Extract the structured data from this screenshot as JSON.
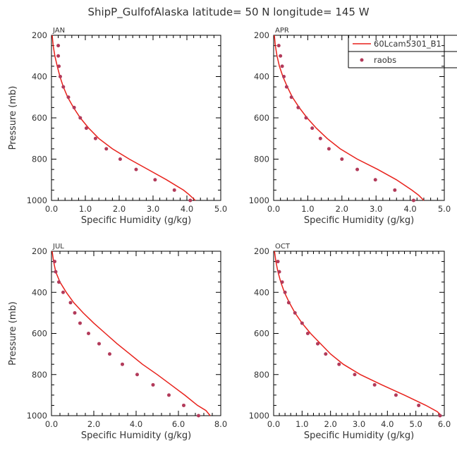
{
  "title": "ShipP_GulfofAlaska  latitude= 50 N longitude= 145 W",
  "chart_data": [
    {
      "type": "line",
      "panel": "JAN",
      "xlabel": "Specific Humidity (g/kg)",
      "ylabel": "Pressure (mb)",
      "xlim": [
        0,
        5
      ],
      "xticks": [
        "0.0",
        "1.0",
        "2.0",
        "3.0",
        "4.0",
        "5.0"
      ],
      "ylim": [
        200,
        1000
      ],
      "yticks": [
        "200",
        "400",
        "600",
        "800",
        "1000"
      ],
      "y_inverted": true,
      "series": [
        {
          "name": "60Lcam5301_B1",
          "kind": "line",
          "color": "#e8211b",
          "points": [
            [
              0.02,
              200
            ],
            [
              0.05,
              250
            ],
            [
              0.1,
              300
            ],
            [
              0.17,
              350
            ],
            [
              0.25,
              400
            ],
            [
              0.35,
              450
            ],
            [
              0.48,
              500
            ],
            [
              0.65,
              550
            ],
            [
              0.85,
              600
            ],
            [
              1.1,
              650
            ],
            [
              1.4,
              700
            ],
            [
              1.8,
              750
            ],
            [
              2.3,
              800
            ],
            [
              2.85,
              850
            ],
            [
              3.4,
              900
            ],
            [
              3.9,
              950
            ],
            [
              4.05,
              970
            ],
            [
              4.25,
              1000
            ]
          ]
        },
        {
          "name": "raobs",
          "kind": "marker",
          "color": "#b23a5a",
          "points": [
            [
              0.2,
              250
            ],
            [
              0.2,
              300
            ],
            [
              0.22,
              350
            ],
            [
              0.26,
              400
            ],
            [
              0.35,
              450
            ],
            [
              0.5,
              500
            ],
            [
              0.67,
              550
            ],
            [
              0.85,
              600
            ],
            [
              1.03,
              650
            ],
            [
              1.3,
              700
            ],
            [
              1.62,
              750
            ],
            [
              2.03,
              800
            ],
            [
              2.5,
              850
            ],
            [
              3.06,
              900
            ],
            [
              3.63,
              950
            ],
            [
              4.1,
              1000
            ]
          ]
        }
      ]
    },
    {
      "type": "line",
      "panel": "APR",
      "xlabel": "Specific Humidity (g/kg)",
      "ylabel": "",
      "xlim": [
        0,
        5
      ],
      "xticks": [
        "0.0",
        "1.0",
        "2.0",
        "3.0",
        "4.0",
        "5.0"
      ],
      "ylim": [
        200,
        1000
      ],
      "yticks": [
        "200",
        "400",
        "600",
        "800",
        "1000"
      ],
      "y_inverted": true,
      "legend": {
        "position": "top-right",
        "entries": [
          "60Lcam5301_B1",
          "raobs"
        ]
      },
      "series": [
        {
          "name": "60Lcam5301_B1",
          "kind": "line",
          "color": "#e8211b",
          "points": [
            [
              0.02,
              200
            ],
            [
              0.05,
              250
            ],
            [
              0.1,
              300
            ],
            [
              0.17,
              350
            ],
            [
              0.27,
              400
            ],
            [
              0.4,
              450
            ],
            [
              0.55,
              500
            ],
            [
              0.75,
              550
            ],
            [
              0.98,
              600
            ],
            [
              1.25,
              650
            ],
            [
              1.57,
              700
            ],
            [
              1.95,
              750
            ],
            [
              2.45,
              800
            ],
            [
              3.05,
              850
            ],
            [
              3.6,
              900
            ],
            [
              4.05,
              950
            ],
            [
              4.25,
              975
            ],
            [
              4.4,
              1000
            ]
          ]
        },
        {
          "name": "raobs",
          "kind": "marker",
          "color": "#b23a5a",
          "points": [
            [
              0.15,
              250
            ],
            [
              0.2,
              300
            ],
            [
              0.25,
              350
            ],
            [
              0.3,
              400
            ],
            [
              0.38,
              450
            ],
            [
              0.52,
              500
            ],
            [
              0.72,
              550
            ],
            [
              0.95,
              600
            ],
            [
              1.13,
              650
            ],
            [
              1.37,
              700
            ],
            [
              1.62,
              750
            ],
            [
              2.0,
              800
            ],
            [
              2.45,
              850
            ],
            [
              2.98,
              900
            ],
            [
              3.55,
              950
            ],
            [
              4.1,
              1000
            ]
          ]
        }
      ]
    },
    {
      "type": "line",
      "panel": "JUL",
      "xlabel": "Specific Humidity (g/kg)",
      "ylabel": "Pressure (mb)",
      "xlim": [
        0,
        8
      ],
      "xticks": [
        "0.0",
        "2.0",
        "4.0",
        "6.0",
        "8.0"
      ],
      "ylim": [
        200,
        1000
      ],
      "yticks": [
        "200",
        "400",
        "600",
        "800",
        "1000"
      ],
      "y_inverted": true,
      "series": [
        {
          "name": "60Lcam5301_B1",
          "kind": "line",
          "color": "#e8211b",
          "points": [
            [
              0.03,
              200
            ],
            [
              0.1,
              250
            ],
            [
              0.2,
              300
            ],
            [
              0.4,
              350
            ],
            [
              0.7,
              400
            ],
            [
              1.05,
              450
            ],
            [
              1.5,
              500
            ],
            [
              2.0,
              550
            ],
            [
              2.55,
              600
            ],
            [
              3.1,
              650
            ],
            [
              3.7,
              700
            ],
            [
              4.3,
              750
            ],
            [
              5.0,
              800
            ],
            [
              5.65,
              850
            ],
            [
              6.3,
              900
            ],
            [
              6.9,
              950
            ],
            [
              7.3,
              975
            ],
            [
              7.5,
              1000
            ]
          ]
        },
        {
          "name": "raobs",
          "kind": "marker",
          "color": "#b23a5a",
          "points": [
            [
              0.15,
              250
            ],
            [
              0.2,
              300
            ],
            [
              0.35,
              350
            ],
            [
              0.55,
              400
            ],
            [
              0.9,
              450
            ],
            [
              1.1,
              500
            ],
            [
              1.35,
              550
            ],
            [
              1.75,
              600
            ],
            [
              2.25,
              650
            ],
            [
              2.75,
              700
            ],
            [
              3.35,
              750
            ],
            [
              4.05,
              800
            ],
            [
              4.8,
              850
            ],
            [
              5.55,
              900
            ],
            [
              6.25,
              950
            ],
            [
              6.95,
              1000
            ]
          ]
        }
      ]
    },
    {
      "type": "line",
      "panel": "OCT",
      "xlabel": "Specific Humidity (g/kg)",
      "ylabel": "",
      "xlim": [
        0,
        6
      ],
      "xticks": [
        "0.0",
        "1.0",
        "2.0",
        "3.0",
        "4.0",
        "5.0",
        "6.0"
      ],
      "ylim": [
        200,
        1000
      ],
      "yticks": [
        "200",
        "400",
        "600",
        "800",
        "1000"
      ],
      "y_inverted": true,
      "series": [
        {
          "name": "60Lcam5301_B1",
          "kind": "line",
          "color": "#e8211b",
          "points": [
            [
              0.03,
              200
            ],
            [
              0.08,
              250
            ],
            [
              0.15,
              300
            ],
            [
              0.25,
              350
            ],
            [
              0.38,
              400
            ],
            [
              0.55,
              450
            ],
            [
              0.75,
              500
            ],
            [
              1.0,
              550
            ],
            [
              1.3,
              600
            ],
            [
              1.65,
              650
            ],
            [
              2.0,
              700
            ],
            [
              2.45,
              750
            ],
            [
              3.05,
              800
            ],
            [
              3.8,
              850
            ],
            [
              4.6,
              900
            ],
            [
              5.35,
              950
            ],
            [
              5.75,
              980
            ],
            [
              5.9,
              1000
            ]
          ]
        },
        {
          "name": "raobs",
          "kind": "marker",
          "color": "#b23a5a",
          "points": [
            [
              0.15,
              250
            ],
            [
              0.2,
              300
            ],
            [
              0.3,
              350
            ],
            [
              0.4,
              400
            ],
            [
              0.53,
              450
            ],
            [
              0.75,
              500
            ],
            [
              1.0,
              550
            ],
            [
              1.2,
              600
            ],
            [
              1.55,
              650
            ],
            [
              1.83,
              700
            ],
            [
              2.3,
              750
            ],
            [
              2.85,
              800
            ],
            [
              3.55,
              850
            ],
            [
              4.3,
              900
            ],
            [
              5.1,
              950
            ],
            [
              5.85,
              1000
            ]
          ]
        }
      ]
    }
  ]
}
